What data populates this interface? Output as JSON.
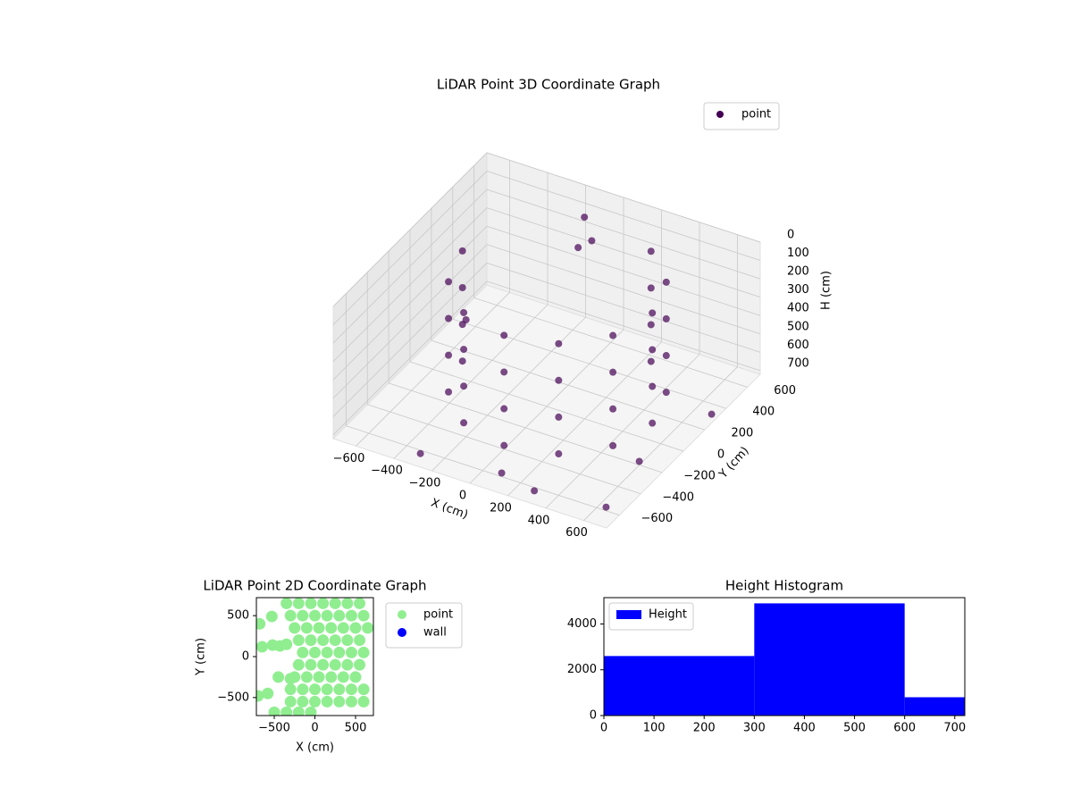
{
  "chart_data": [
    {
      "type": "scatter3d",
      "title": "LiDAR Point 3D Coordinate Graph",
      "xlabel": "X (cm)",
      "ylabel": "Y (cm)",
      "zlabel": "H (cm)",
      "xlim": [
        -720,
        720
      ],
      "ylim": [
        -720,
        720
      ],
      "zlim": [
        0,
        720
      ],
      "z_inverted": true,
      "xticks": [
        {
          "value": -600,
          "label": "−600"
        },
        {
          "value": -400,
          "label": "−400"
        },
        {
          "value": -200,
          "label": "−200"
        },
        0,
        200,
        400,
        600
      ],
      "yticks": [
        {
          "value": -600,
          "label": "−600"
        },
        {
          "value": -400,
          "label": "−400"
        },
        {
          "value": -200,
          "label": "−200"
        },
        0,
        200,
        400,
        600
      ],
      "zticks": [
        0,
        100,
        200,
        300,
        400,
        500,
        600,
        700
      ],
      "grid": true,
      "legend": "upper right",
      "series": [
        {
          "name": "point",
          "color": "#440154",
          "x": [
            -500,
            -500,
            -500,
            -500,
            -433,
            -433,
            -433,
            -433,
            -250,
            -250,
            -250,
            -250,
            0,
            0,
            0,
            0,
            250,
            250,
            250,
            250,
            433,
            433,
            433,
            433,
            500,
            500,
            500,
            500,
            433,
            433,
            433,
            433,
            250,
            250,
            250,
            250,
            -650,
            300,
            650,
            600,
            -300,
            100,
            700,
            -200,
            -100,
            -150
          ],
          "y": [
            100,
            100,
            100,
            100,
            -150,
            -150,
            -150,
            -150,
            -333,
            -333,
            -333,
            -333,
            -400,
            -400,
            -400,
            -400,
            -333,
            -333,
            -333,
            -333,
            -150,
            -150,
            -150,
            -150,
            100,
            100,
            100,
            100,
            350,
            350,
            350,
            350,
            533,
            533,
            533,
            533,
            400,
            -650,
            -600,
            -200,
            -650,
            -600,
            300,
            650,
            600,
            620
          ],
          "z": [
            100,
            300,
            500,
            700,
            100,
            300,
            500,
            700,
            100,
            300,
            500,
            700,
            100,
            300,
            500,
            700,
            100,
            300,
            500,
            700,
            100,
            300,
            500,
            700,
            100,
            300,
            500,
            700,
            100,
            300,
            500,
            700,
            100,
            300,
            500,
            700,
            700,
            700,
            700,
            700,
            700,
            700,
            700,
            300,
            200,
            100
          ]
        }
      ]
    },
    {
      "type": "scatter",
      "title": "LiDAR Point 2D Coordinate Graph",
      "xlabel": "X (cm)",
      "ylabel": "Y (cm)",
      "xlim": [
        -720,
        720
      ],
      "ylim": [
        -720,
        720
      ],
      "xticks": [
        {
          "value": -500,
          "label": "−500"
        },
        0,
        500
      ],
      "yticks": [
        {
          "value": -500,
          "label": "−500"
        },
        0,
        500
      ],
      "legend": "outside right",
      "series": [
        {
          "name": "point",
          "color": "#90ee90",
          "x": [
            -350,
            -200,
            -50,
            100,
            250,
            400,
            550,
            -300,
            -150,
            0,
            150,
            300,
            450,
            600,
            -250,
            -100,
            50,
            200,
            350,
            500,
            650,
            -200,
            -50,
            100,
            250,
            400,
            550,
            -150,
            0,
            150,
            300,
            450,
            600,
            -200,
            -50,
            100,
            250,
            400,
            550,
            -250,
            -100,
            50,
            200,
            350,
            500,
            -300,
            -150,
            0,
            150,
            300,
            450,
            600,
            -300,
            -150,
            0,
            150,
            300,
            450,
            600,
            -500,
            -350,
            -200,
            -50,
            -530,
            -430,
            -520,
            -350,
            -450,
            -300,
            -700,
            -580,
            -680,
            -650
          ],
          "y": [
            650,
            650,
            650,
            650,
            650,
            650,
            650,
            500,
            500,
            500,
            500,
            500,
            500,
            500,
            350,
            350,
            350,
            350,
            350,
            350,
            350,
            200,
            200,
            200,
            200,
            200,
            200,
            50,
            50,
            50,
            50,
            50,
            50,
            -100,
            -100,
            -100,
            -100,
            -100,
            -100,
            -250,
            -250,
            -250,
            -250,
            -250,
            -250,
            -400,
            -400,
            -400,
            -400,
            -400,
            -400,
            -400,
            -550,
            -550,
            -550,
            -550,
            -550,
            -550,
            -550,
            -680,
            -680,
            -680,
            -680,
            490,
            130,
            140,
            150,
            -250,
            -270,
            -480,
            -450,
            400,
            120
          ]
        },
        {
          "name": "wall",
          "color": "#0000ff",
          "x": [],
          "y": []
        }
      ]
    },
    {
      "type": "histogram",
      "title": "Height Histogram",
      "bins": [
        0,
        300,
        600,
        720
      ],
      "series": [
        {
          "name": "Height",
          "color": "#0000ff",
          "values": [
            2600,
            4900,
            800
          ]
        }
      ],
      "xlim": [
        0,
        720
      ],
      "ylim": [
        0,
        5150
      ],
      "xticks": [
        0,
        100,
        200,
        300,
        400,
        500,
        600,
        700
      ],
      "yticks": [
        0,
        2000,
        4000
      ],
      "legend": "upper left"
    }
  ]
}
